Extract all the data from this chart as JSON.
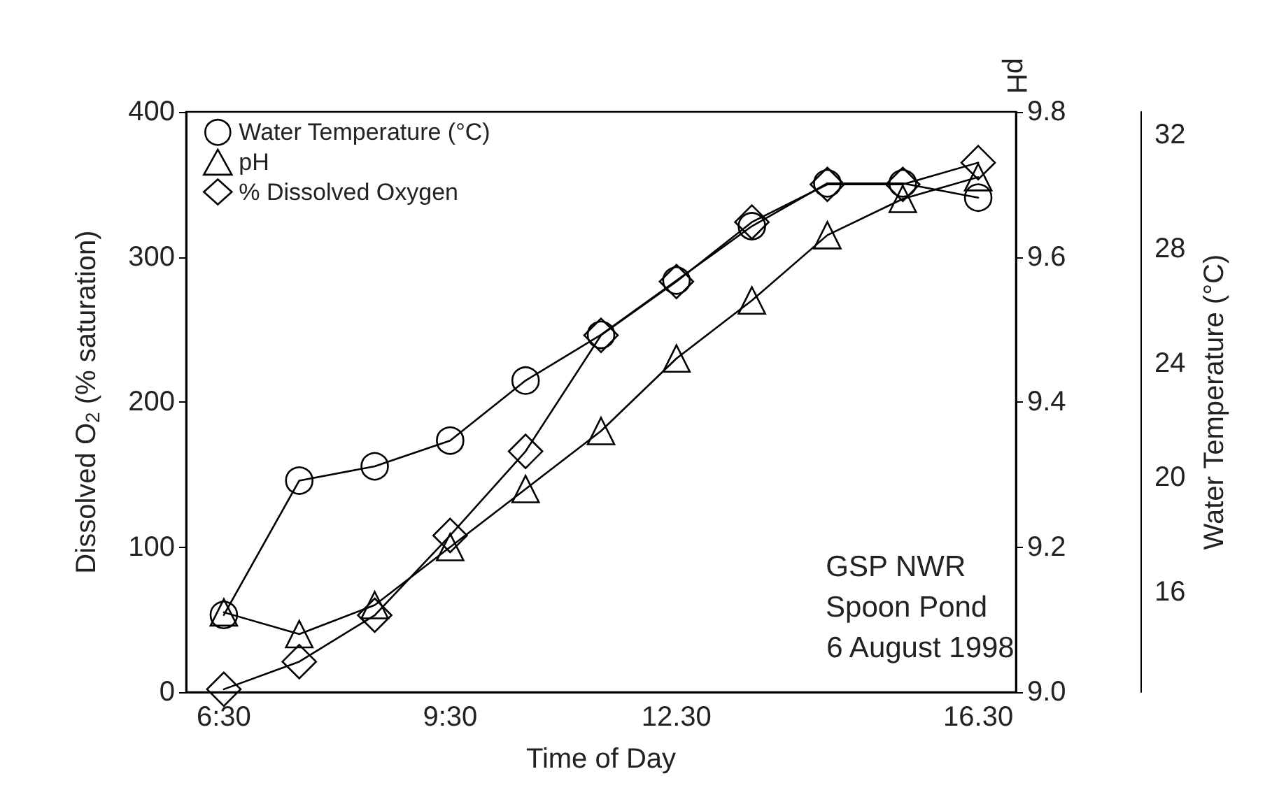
{
  "chart_data": {
    "type": "line",
    "xlabel": "Time of Day",
    "ylabel": "Dissolved O$_{2}$ (% saturation)",
    "y2label": "pH",
    "y3label": "Water Temperature (°C)",
    "categories": [
      "6:30",
      null,
      null,
      "9:30",
      null,
      null,
      "12.30",
      null,
      null,
      null,
      "16.30"
    ],
    "ylim": [
      0,
      400
    ],
    "yticks": [
      0,
      100,
      200,
      300,
      400
    ],
    "y2lim": [
      9,
      9.8
    ],
    "y2ticks": [
      {
        "value": 9,
        "label": "9.0"
      },
      9.2,
      9.4,
      9.6,
      9.8
    ],
    "y3lim": [
      12.5,
      32.8
    ],
    "y3ticks": [
      16,
      20,
      24,
      28,
      32
    ],
    "series": [
      {
        "name": "Water Temperature (°C)",
        "color": "#000000",
        "marker": "circle",
        "axis": "y3",
        "values": [
          15.2,
          19.9,
          20.4,
          21.3,
          23.4,
          25.0,
          26.9,
          28.8,
          30.3,
          30.3,
          29.8
        ]
      },
      {
        "name": "pH",
        "color": "#000000",
        "marker": "triangle",
        "axis": "y2",
        "values": [
          9.11,
          9.08,
          9.12,
          9.2,
          9.28,
          9.36,
          9.46,
          9.54,
          9.63,
          9.68,
          9.71
        ]
      },
      {
        "name": "% Dissolved Oxygen",
        "color": "#000000",
        "marker": "diamond",
        "axis": "y",
        "values": [
          2,
          21,
          53,
          108,
          166,
          246,
          283,
          324,
          350,
          350,
          365
        ]
      }
    ],
    "legend": "top left",
    "line_style": "solid",
    "annotations": [
      "GSP NWR",
      "Spoon Pond",
      "6 August 1998"
    ]
  }
}
